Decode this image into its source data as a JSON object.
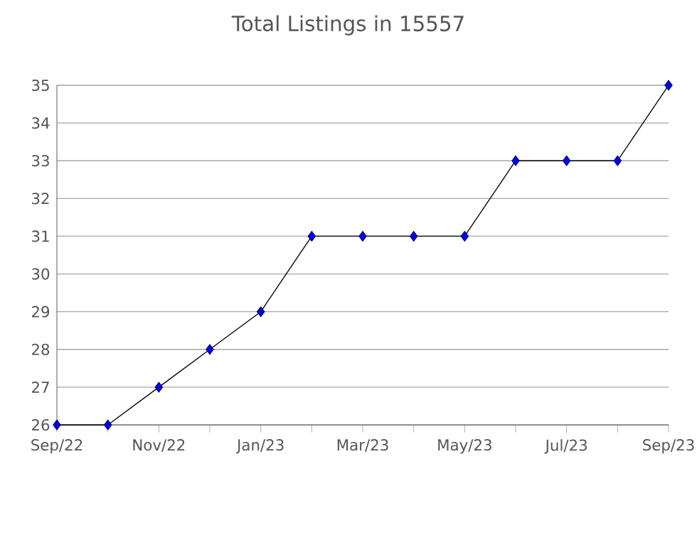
{
  "chart_data": {
    "type": "line",
    "title": "Total Listings in 15557",
    "x": [
      "2022-09",
      "2022-10",
      "2022-11",
      "2022-12",
      "2023-01",
      "2023-02",
      "2023-03",
      "2023-04",
      "2023-05",
      "2023-06",
      "2023-07",
      "2023-08",
      "2023-09"
    ],
    "series": [
      {
        "color": "#0000ff",
        "values": [
          26,
          26,
          27,
          28,
          29,
          31,
          31,
          31,
          31,
          33,
          33,
          33,
          35
        ]
      }
    ],
    "xlim": [
      "2022-09",
      "2023-09"
    ],
    "xticks": [
      {
        "value": "2022-09",
        "label": "Sep/22"
      },
      {
        "value": "2022-10",
        "label": null
      },
      {
        "value": "2022-11",
        "label": "Nov/22"
      },
      {
        "value": "2022-12",
        "label": null
      },
      {
        "value": "2023-01",
        "label": "Jan/23"
      },
      {
        "value": "2023-02",
        "label": null
      },
      {
        "value": "2023-03",
        "label": "Mar/23"
      },
      {
        "value": "2023-04",
        "label": null
      },
      {
        "value": "2023-05",
        "label": "May/23"
      },
      {
        "value": "2023-06",
        "label": null
      },
      {
        "value": "2023-07",
        "label": "Jul/23"
      },
      {
        "value": "2023-08",
        "label": null
      },
      {
        "value": "2023-09",
        "label": "Sep/23"
      }
    ],
    "ylim": [
      26,
      35
    ],
    "yticks": [
      26,
      27,
      28,
      29,
      30,
      31,
      32,
      33,
      34,
      35
    ],
    "grid": "y",
    "marker": "diamond",
    "line_style": "solid"
  }
}
